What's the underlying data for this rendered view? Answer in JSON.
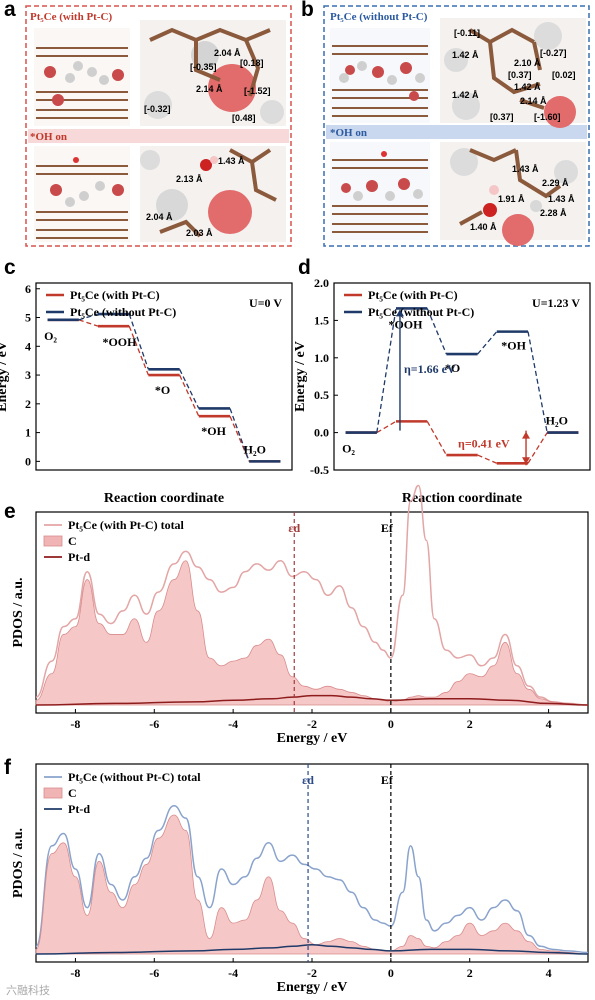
{
  "panels": {
    "a": {
      "letter": "a",
      "top_label": "Pt₅Ce (with Pt-C)",
      "mid_label": "*OH on",
      "values": [
        "2.04 Å",
        "[-0.35]",
        "[0.18]",
        "[-1.52]",
        "[-0.32]",
        "[0.48]",
        "2.14 Å",
        "1.43 Å",
        "2.13 Å",
        "2.04 Å",
        "2.03 Å"
      ],
      "frame_color": "#d9534f",
      "band_color": "#f7d9da"
    },
    "b": {
      "letter": "b",
      "top_label": "Pt₅Ce (without Pt-C)",
      "mid_label": "*OH on",
      "values": [
        "[-0.11]",
        "[-0.27]",
        "1.42 Å",
        "2.10 Å",
        "[0.37]",
        "[0.02]",
        "1.42 Å",
        "1.42 Å",
        "2.14 Å",
        "[0.37]",
        "[-1.60]",
        "1.43 Å",
        "2.29 Å",
        "1.43 Å",
        "2.28 Å",
        "1.91 Å",
        "1.40 Å"
      ],
      "frame_color": "#3a6fb0",
      "band_color": "#c9d8ee"
    },
    "c": {
      "letter": "c"
    },
    "d": {
      "letter": "d"
    },
    "e": {
      "letter": "e"
    },
    "f": {
      "letter": "f"
    }
  },
  "colors": {
    "red": "#c0392b",
    "navy": "#1f3a68",
    "pink_line": "#e3a5a5",
    "pink_fill": "#f1b4b4",
    "dark_red": "#8e1c1c",
    "blue_line": "#8aa3cc"
  },
  "watermark": "六融科技",
  "chart_data": [
    {
      "id": "c",
      "type": "line",
      "title": "",
      "condition": "U=0 V",
      "xlabel": "Reaction coordinate",
      "ylabel": "Energy / eV",
      "ylim": [
        -0.3,
        6.2
      ],
      "yticks": [
        0,
        1,
        2,
        3,
        4,
        5,
        6
      ],
      "steps": [
        "O₂",
        "*OOH",
        "*O",
        "*OH",
        "H₂O"
      ],
      "legend_position": "top-left",
      "series": [
        {
          "name": "Pt₅Ce (with Pt-C)",
          "color": "#c0392b",
          "values": [
            4.92,
            4.7,
            3.0,
            1.57,
            0
          ]
        },
        {
          "name": "Pt₅Ce (without Pt-C)",
          "color": "#1f3a68",
          "values": [
            4.92,
            5.12,
            3.2,
            1.84,
            0
          ]
        }
      ]
    },
    {
      "id": "d",
      "type": "line",
      "title": "",
      "condition": "U=1.23 V",
      "xlabel": "Reaction coordinate",
      "ylabel": "Energy / eV",
      "ylim": [
        -0.5,
        2.0
      ],
      "yticks": [
        -0.5,
        0.0,
        0.5,
        1.0,
        1.5,
        2.0
      ],
      "steps": [
        "O₂",
        "*OOH",
        "*O",
        "*OH",
        "H₂O"
      ],
      "legend_position": "top-left",
      "series": [
        {
          "name": "Pt₅Ce (with Pt-C)",
          "color": "#c0392b",
          "values": [
            0,
            0.15,
            -0.3,
            -0.41,
            0
          ]
        },
        {
          "name": "Pt₅Ce (without Pt-C)",
          "color": "#1f3a68",
          "values": [
            0,
            1.66,
            1.05,
            1.35,
            0
          ]
        }
      ],
      "annotations": [
        "η=1.66 eV",
        "η=0.41 eV"
      ]
    },
    {
      "id": "e",
      "type": "area",
      "title": "",
      "xlabel": "Energy / eV",
      "ylabel": "PDOS / a.u.",
      "xlim": [
        -9,
        5
      ],
      "xticks": [
        -8,
        -6,
        -4,
        -2,
        0,
        2,
        4
      ],
      "ed_position": -2.45,
      "ed_label": "εd",
      "ef_position": 0,
      "ef_label": "Ef",
      "legend_position": "top-left",
      "series": [
        {
          "name": "Pt₅Ce (with Pt-C) total",
          "style": "line",
          "color": "#e3a5a5",
          "x": [
            -9,
            -8.6,
            -8.3,
            -8,
            -7.7,
            -7.4,
            -7.1,
            -6.8,
            -6.5,
            -6.2,
            -5.9,
            -5.5,
            -5.2,
            -4.9,
            -4.6,
            -4.3,
            -4,
            -3.7,
            -3.4,
            -3.1,
            -2.8,
            -2.5,
            -2.2,
            -1.9,
            -1.6,
            -1.3,
            -1,
            -0.7,
            -0.4,
            -0.2,
            0,
            0.3,
            0.5,
            0.7,
            0.9,
            1.1,
            1.4,
            1.7,
            2,
            2.3,
            2.6,
            2.9,
            3.2,
            3.5,
            3.8,
            4.1,
            4.5,
            5
          ],
          "values": [
            0.05,
            0.28,
            0.5,
            0.55,
            0.85,
            0.58,
            0.52,
            0.6,
            0.7,
            0.58,
            0.72,
            0.9,
            0.98,
            0.88,
            0.8,
            0.72,
            0.75,
            0.85,
            0.9,
            0.86,
            0.92,
            0.82,
            0.85,
            0.8,
            0.7,
            0.76,
            0.62,
            0.5,
            0.4,
            0.35,
            0.3,
            0.7,
            1.3,
            1.4,
            1.05,
            0.55,
            0.35,
            0.3,
            0.32,
            0.25,
            0.3,
            0.45,
            0.25,
            0.12,
            0.05,
            0.02,
            0.01,
            0
          ]
        },
        {
          "name": "C",
          "style": "area",
          "color": "#f1b4b4",
          "x": [
            -9,
            -8.6,
            -8.3,
            -8,
            -7.7,
            -7.4,
            -7.1,
            -6.8,
            -6.5,
            -6.2,
            -5.9,
            -5.5,
            -5.2,
            -4.9,
            -4.6,
            -4.3,
            -4,
            -3.7,
            -3.4,
            -3.1,
            -2.8,
            -2.5,
            -2.2,
            -1.9,
            -1.6,
            -1.3,
            -1,
            -0.7,
            -0.4,
            -0.2,
            0,
            0.3,
            0.5,
            0.7,
            0.9,
            1.1,
            1.4,
            1.7,
            2,
            2.3,
            2.6,
            2.9,
            3.2,
            3.5,
            3.8,
            4.1,
            4.5,
            5
          ],
          "values": [
            0.03,
            0.2,
            0.45,
            0.5,
            0.8,
            0.52,
            0.45,
            0.45,
            0.55,
            0.4,
            0.6,
            0.8,
            0.92,
            0.6,
            0.3,
            0.25,
            0.28,
            0.3,
            0.38,
            0.42,
            0.32,
            0.18,
            0.12,
            0.1,
            0.12,
            0.1,
            0.08,
            0.06,
            0.04,
            0.03,
            0.02,
            0.03,
            0.05,
            0.06,
            0.05,
            0.05,
            0.08,
            0.15,
            0.2,
            0.18,
            0.25,
            0.4,
            0.2,
            0.1,
            0.04,
            0.02,
            0.01,
            0
          ]
        },
        {
          "name": "Pt-d",
          "style": "line",
          "color": "#8e1c1c",
          "x": [
            -9,
            -7,
            -5,
            -4,
            -3,
            -2.5,
            -2,
            -1.5,
            -1,
            -0.5,
            0,
            1,
            2,
            3,
            4,
            5
          ],
          "values": [
            0,
            0.01,
            0.02,
            0.03,
            0.04,
            0.05,
            0.06,
            0.06,
            0.05,
            0.04,
            0.03,
            0.04,
            0.04,
            0.03,
            0.01,
            0
          ]
        }
      ]
    },
    {
      "id": "f",
      "type": "area",
      "title": "",
      "xlabel": "Energy / eV",
      "ylabel": "PDOS / a.u.",
      "xlim": [
        -9,
        5
      ],
      "xticks": [
        -8,
        -6,
        -4,
        -2,
        0,
        2,
        4
      ],
      "ed_position": -2.1,
      "ed_label": "εd",
      "ef_position": 0,
      "ef_label": "Ef",
      "legend_position": "top-left",
      "series": [
        {
          "name": "Pt₅Ce (without Pt-C) total",
          "style": "line",
          "color": "#8aa3cc",
          "x": [
            -9,
            -8.6,
            -8.3,
            -8,
            -7.7,
            -7.4,
            -7.1,
            -6.8,
            -6.5,
            -6.2,
            -5.9,
            -5.5,
            -5.2,
            -4.9,
            -4.6,
            -4.3,
            -4,
            -3.7,
            -3.4,
            -3.1,
            -2.8,
            -2.5,
            -2.2,
            -1.9,
            -1.6,
            -1.3,
            -1,
            -0.7,
            -0.4,
            -0.2,
            0,
            0.3,
            0.5,
            0.7,
            0.9,
            1.1,
            1.4,
            1.7,
            2,
            2.3,
            2.6,
            2.9,
            3.2,
            3.5,
            3.8,
            4.1,
            4.5,
            5
          ],
          "values": [
            0.05,
            0.7,
            0.78,
            0.55,
            0.3,
            0.65,
            0.45,
            0.35,
            0.5,
            0.62,
            0.8,
            0.96,
            0.88,
            0.5,
            0.3,
            0.55,
            0.45,
            0.5,
            0.62,
            0.72,
            0.6,
            0.64,
            0.58,
            0.55,
            0.5,
            0.48,
            0.4,
            0.3,
            0.22,
            0.2,
            0.18,
            0.4,
            0.7,
            0.5,
            0.22,
            0.15,
            0.2,
            0.25,
            0.3,
            0.22,
            0.3,
            0.35,
            0.28,
            0.12,
            0.05,
            0.03,
            0.02,
            0.01
          ]
        },
        {
          "name": "C",
          "style": "area",
          "color": "#f1b4b4",
          "x": [
            -9,
            -8.6,
            -8.3,
            -8,
            -7.7,
            -7.4,
            -7.1,
            -6.8,
            -6.5,
            -6.2,
            -5.9,
            -5.5,
            -5.2,
            -4.9,
            -4.6,
            -4.3,
            -4,
            -3.7,
            -3.4,
            -3.1,
            -2.8,
            -2.5,
            -2.2,
            -1.9,
            -1.6,
            -1.3,
            -1,
            -0.7,
            -0.4,
            -0.2,
            0,
            0.3,
            0.5,
            0.7,
            0.9,
            1.1,
            1.4,
            1.7,
            2,
            2.3,
            2.6,
            2.9,
            3.2,
            3.5,
            3.8,
            4.1,
            4.5,
            5
          ],
          "values": [
            0.03,
            0.65,
            0.72,
            0.5,
            0.25,
            0.6,
            0.4,
            0.3,
            0.45,
            0.58,
            0.75,
            0.9,
            0.8,
            0.35,
            0.1,
            0.3,
            0.2,
            0.22,
            0.35,
            0.5,
            0.28,
            0.2,
            0.1,
            0.06,
            0.08,
            0.1,
            0.08,
            0.05,
            0.03,
            0.02,
            0.02,
            0.05,
            0.12,
            0.1,
            0.05,
            0.04,
            0.08,
            0.12,
            0.2,
            0.12,
            0.15,
            0.2,
            0.15,
            0.08,
            0.03,
            0.02,
            0.01,
            0
          ]
        },
        {
          "name": "Pt-d",
          "style": "line",
          "color": "#1f3a68",
          "x": [
            -9,
            -7,
            -5,
            -4,
            -3,
            -2.5,
            -2,
            -1.5,
            -1,
            -0.5,
            0,
            1,
            2,
            3,
            4,
            5
          ],
          "values": [
            0,
            0.01,
            0.02,
            0.03,
            0.04,
            0.05,
            0.06,
            0.05,
            0.04,
            0.03,
            0.02,
            0.03,
            0.03,
            0.02,
            0.01,
            0
          ]
        }
      ]
    }
  ]
}
